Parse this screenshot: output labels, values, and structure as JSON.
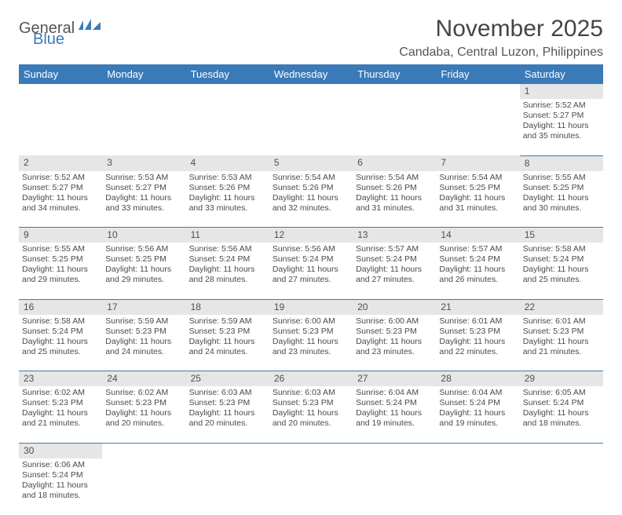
{
  "logo": {
    "word1": "General",
    "word2": "Blue",
    "color1": "#555555",
    "color2": "#3a7ab8"
  },
  "title": "November 2025",
  "location": "Candaba, Central Luzon, Philippines",
  "header_bg": "#3a7ab8",
  "daynum_bg": "#e6e6e6",
  "border_color": "#3a7ab8",
  "weekdays": [
    "Sunday",
    "Monday",
    "Tuesday",
    "Wednesday",
    "Thursday",
    "Friday",
    "Saturday"
  ],
  "weeks": [
    {
      "nums": [
        "",
        "",
        "",
        "",
        "",
        "",
        "1"
      ],
      "cells": [
        null,
        null,
        null,
        null,
        null,
        null,
        {
          "sunrise": "5:52 AM",
          "sunset": "5:27 PM",
          "daylight": "11 hours and 35 minutes."
        }
      ]
    },
    {
      "nums": [
        "2",
        "3",
        "4",
        "5",
        "6",
        "7",
        "8"
      ],
      "cells": [
        {
          "sunrise": "5:52 AM",
          "sunset": "5:27 PM",
          "daylight": "11 hours and 34 minutes."
        },
        {
          "sunrise": "5:53 AM",
          "sunset": "5:27 PM",
          "daylight": "11 hours and 33 minutes."
        },
        {
          "sunrise": "5:53 AM",
          "sunset": "5:26 PM",
          "daylight": "11 hours and 33 minutes."
        },
        {
          "sunrise": "5:54 AM",
          "sunset": "5:26 PM",
          "daylight": "11 hours and 32 minutes."
        },
        {
          "sunrise": "5:54 AM",
          "sunset": "5:26 PM",
          "daylight": "11 hours and 31 minutes."
        },
        {
          "sunrise": "5:54 AM",
          "sunset": "5:25 PM",
          "daylight": "11 hours and 31 minutes."
        },
        {
          "sunrise": "5:55 AM",
          "sunset": "5:25 PM",
          "daylight": "11 hours and 30 minutes."
        }
      ]
    },
    {
      "nums": [
        "9",
        "10",
        "11",
        "12",
        "13",
        "14",
        "15"
      ],
      "cells": [
        {
          "sunrise": "5:55 AM",
          "sunset": "5:25 PM",
          "daylight": "11 hours and 29 minutes."
        },
        {
          "sunrise": "5:56 AM",
          "sunset": "5:25 PM",
          "daylight": "11 hours and 29 minutes."
        },
        {
          "sunrise": "5:56 AM",
          "sunset": "5:24 PM",
          "daylight": "11 hours and 28 minutes."
        },
        {
          "sunrise": "5:56 AM",
          "sunset": "5:24 PM",
          "daylight": "11 hours and 27 minutes."
        },
        {
          "sunrise": "5:57 AM",
          "sunset": "5:24 PM",
          "daylight": "11 hours and 27 minutes."
        },
        {
          "sunrise": "5:57 AM",
          "sunset": "5:24 PM",
          "daylight": "11 hours and 26 minutes."
        },
        {
          "sunrise": "5:58 AM",
          "sunset": "5:24 PM",
          "daylight": "11 hours and 25 minutes."
        }
      ]
    },
    {
      "nums": [
        "16",
        "17",
        "18",
        "19",
        "20",
        "21",
        "22"
      ],
      "cells": [
        {
          "sunrise": "5:58 AM",
          "sunset": "5:24 PM",
          "daylight": "11 hours and 25 minutes."
        },
        {
          "sunrise": "5:59 AM",
          "sunset": "5:23 PM",
          "daylight": "11 hours and 24 minutes."
        },
        {
          "sunrise": "5:59 AM",
          "sunset": "5:23 PM",
          "daylight": "11 hours and 24 minutes."
        },
        {
          "sunrise": "6:00 AM",
          "sunset": "5:23 PM",
          "daylight": "11 hours and 23 minutes."
        },
        {
          "sunrise": "6:00 AM",
          "sunset": "5:23 PM",
          "daylight": "11 hours and 23 minutes."
        },
        {
          "sunrise": "6:01 AM",
          "sunset": "5:23 PM",
          "daylight": "11 hours and 22 minutes."
        },
        {
          "sunrise": "6:01 AM",
          "sunset": "5:23 PM",
          "daylight": "11 hours and 21 minutes."
        }
      ]
    },
    {
      "nums": [
        "23",
        "24",
        "25",
        "26",
        "27",
        "28",
        "29"
      ],
      "cells": [
        {
          "sunrise": "6:02 AM",
          "sunset": "5:23 PM",
          "daylight": "11 hours and 21 minutes."
        },
        {
          "sunrise": "6:02 AM",
          "sunset": "5:23 PM",
          "daylight": "11 hours and 20 minutes."
        },
        {
          "sunrise": "6:03 AM",
          "sunset": "5:23 PM",
          "daylight": "11 hours and 20 minutes."
        },
        {
          "sunrise": "6:03 AM",
          "sunset": "5:23 PM",
          "daylight": "11 hours and 20 minutes."
        },
        {
          "sunrise": "6:04 AM",
          "sunset": "5:24 PM",
          "daylight": "11 hours and 19 minutes."
        },
        {
          "sunrise": "6:04 AM",
          "sunset": "5:24 PM",
          "daylight": "11 hours and 19 minutes."
        },
        {
          "sunrise": "6:05 AM",
          "sunset": "5:24 PM",
          "daylight": "11 hours and 18 minutes."
        }
      ]
    },
    {
      "nums": [
        "30",
        "",
        "",
        "",
        "",
        "",
        ""
      ],
      "cells": [
        {
          "sunrise": "6:06 AM",
          "sunset": "5:24 PM",
          "daylight": "11 hours and 18 minutes."
        },
        null,
        null,
        null,
        null,
        null,
        null
      ],
      "last": true
    }
  ],
  "labels": {
    "sunrise": "Sunrise: ",
    "sunset": "Sunset: ",
    "daylight": "Daylight: "
  }
}
